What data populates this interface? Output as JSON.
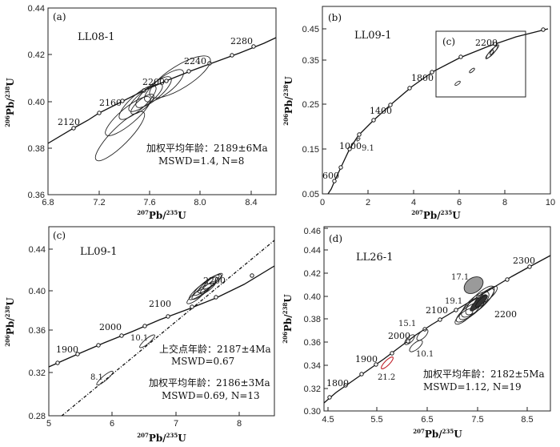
{
  "chart_data": [
    {
      "type": "scatter",
      "panel": "(a)",
      "title": "LL08-1",
      "xlabel": {
        "pre": "207",
        "main": "Pb/",
        "pre2": "235",
        "end": "U"
      },
      "ylabel": {
        "pre": "206",
        "main": "Pb/",
        "pre2": "238",
        "end": "U"
      },
      "xlim": [
        6.8,
        8.6
      ],
      "ylim": [
        0.36,
        0.44
      ],
      "xticks": [
        "6.8",
        "7.2",
        "7.6",
        "8.0",
        "8.4"
      ],
      "yticks": [
        "0.36",
        "0.38",
        "0.40",
        "0.42",
        "0.44"
      ],
      "concordia_labels": [
        "2120",
        "2160",
        "2200",
        "2240",
        "2280"
      ],
      "annotation_lines": [
        "加权平均年龄：2189±6Ma",
        "MSWD=1.4, N=8"
      ]
    },
    {
      "type": "scatter",
      "panel": "(b)",
      "title": "LL09-1",
      "xlabel": {
        "pre": "207",
        "main": "Pb/",
        "pre2": "235",
        "end": "U"
      },
      "ylabel": {
        "pre": "206",
        "main": "Pb/",
        "pre2": "238",
        "end": "U"
      },
      "xlim": [
        0,
        10
      ],
      "ylim": [
        0.05,
        0.47
      ],
      "xticks": [
        "0",
        "2",
        "4",
        "6",
        "8",
        "10"
      ],
      "yticks": [
        "0.05",
        "0.15",
        "0.25",
        "0.35",
        "0.45"
      ],
      "concordia_labels": [
        "600",
        "1000",
        "1400",
        "1800",
        "2200"
      ],
      "spot_labels": [
        "9.1"
      ],
      "inset_label": "(c)"
    },
    {
      "type": "scatter",
      "panel": "(c)",
      "title": "LL09-1",
      "xlabel": {
        "pre": "207",
        "main": "Pb/",
        "pre2": "235",
        "end": "U"
      },
      "ylabel": {
        "pre": "206",
        "main": "Pb/",
        "pre2": "238",
        "end": "U"
      },
      "xlim": [
        5,
        8.5
      ],
      "ylim": [
        0.28,
        0.45
      ],
      "xticks": [
        "5",
        "6",
        "7",
        "8"
      ],
      "yticks": [
        "0.28",
        "0.32",
        "0.36",
        "0.40",
        "0.44"
      ],
      "concordia_labels": [
        "1900",
        "2000",
        "2100",
        "2200"
      ],
      "spot_labels": [
        "8.1",
        "10.1"
      ],
      "annotation_lines": [
        "上交点年龄：2187±4Ma",
        "MSWD=0.67",
        "加权平均年龄：2186±3Ma",
        "MSWD=0.69, N=13"
      ]
    },
    {
      "type": "scatter",
      "panel": "(d)",
      "title": "LL26-1",
      "xlabel": {
        "pre": "207",
        "main": "Pb/",
        "pre2": "235",
        "end": "U"
      },
      "ylabel": {
        "pre": "206",
        "main": "Pb/",
        "pre2": "238",
        "end": "U"
      },
      "xlim": [
        4.5,
        9
      ],
      "ylim": [
        0.3,
        0.46
      ],
      "xticks": [
        "4.5",
        "5.5",
        "6.5",
        "7.5",
        "8.5"
      ],
      "yticks": [
        "0.30",
        "0.32",
        "0.34",
        "0.36",
        "0.38",
        "0.40",
        "0.42",
        "0.44",
        "0.46"
      ],
      "concordia_labels": [
        "1800",
        "1900",
        "2000",
        "2100",
        "2200",
        "2300"
      ],
      "spot_labels": [
        "21.2",
        "10.1",
        "15.1",
        "19.1",
        "17.1"
      ],
      "annotation_lines": [
        "加权平均年龄：2182±5Ma",
        "MSWD=1.12, N=19"
      ]
    }
  ]
}
